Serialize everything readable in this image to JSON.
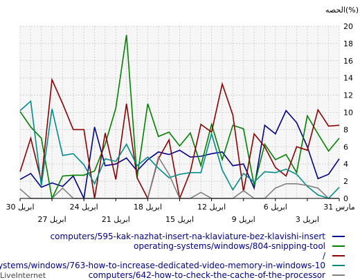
{
  "chart_data": {
    "type": "line",
    "ylabel": "الحصه(%)",
    "ylim": [
      0,
      20
    ],
    "y_ticks": [
      0,
      2,
      4,
      6,
      8,
      10,
      12,
      14,
      16,
      18,
      20
    ],
    "x_ticks": [
      {
        "i": 0,
        "top": "30 ابريل",
        "bottom": ""
      },
      {
        "i": 3,
        "top": "",
        "bottom": "27 ابريل"
      },
      {
        "i": 6,
        "top": "24 ابريل",
        "bottom": ""
      },
      {
        "i": 9,
        "top": "",
        "bottom": "21 ابريل"
      },
      {
        "i": 12,
        "top": "18 ابريل",
        "bottom": ""
      },
      {
        "i": 15,
        "top": "",
        "bottom": "15 ابريل"
      },
      {
        "i": 18,
        "top": "12 ابريل",
        "bottom": ""
      },
      {
        "i": 21,
        "top": "",
        "bottom": "9 ابريل"
      },
      {
        "i": 24,
        "top": "6 ابريل",
        "bottom": ""
      },
      {
        "i": 27,
        "top": "",
        "bottom": "3 ابريل"
      },
      {
        "i": 30,
        "top": "31 مارس",
        "bottom": ""
      }
    ],
    "points_per_series": 31,
    "x_direction": "right-to-left (index 0 = 30 ابريل on the left, index 30 = 31 مارس on the right)",
    "grid": true,
    "series": [
      {
        "name": "computers/595-kak-nazhat-insert-na-klaviature-bez-klavishi-insert",
        "color": "#00008b",
        "values": [
          2.2,
          2.9,
          1.3,
          1.8,
          1.4,
          2.6,
          0.0,
          8.3,
          3.8,
          4.0,
          4.7,
          3.2,
          4.5,
          5.4,
          5.1,
          5.6,
          4.8,
          4.9,
          5.2,
          5.4,
          3.8,
          4.0,
          1.2,
          8.5,
          7.5,
          10.2,
          8.8,
          6.0,
          2.3,
          2.8,
          4.6
        ]
      },
      {
        "name": "operating-systems/windows/804-snipping-tool",
        "color": "#008000",
        "values": [
          10.1,
          8.3,
          7.0,
          0.0,
          2.6,
          2.7,
          2.7,
          3.2,
          6.3,
          10.5,
          19.0,
          2.4,
          11.0,
          7.2,
          7.7,
          6.1,
          7.6,
          3.8,
          8.6,
          4.5,
          8.5,
          8.1,
          1.5,
          6.3,
          4.5,
          5.1,
          3.0,
          9.6,
          7.5,
          5.5,
          7.0
        ]
      },
      {
        "name": "/",
        "color": "#8b0000",
        "values": [
          3.1,
          7.0,
          2.0,
          13.8,
          11.0,
          8.0,
          8.0,
          0.0,
          7.6,
          2.2,
          11.0,
          2.4,
          0.0,
          4.6,
          6.8,
          0.0,
          3.1,
          8.6,
          7.7,
          13.3,
          9.7,
          0.8,
          7.5,
          6.0,
          3.6,
          2.6,
          6.0,
          5.6,
          10.3,
          8.4,
          8.5
        ]
      },
      {
        "name": "operating-systems/windows/763-how-to-increase-dedicated-video-memory-in-windows-10",
        "color": "#008b8b",
        "values": [
          10.2,
          11.3,
          1.5,
          10.4,
          5.0,
          5.2,
          3.9,
          1.7,
          4.6,
          4.3,
          6.3,
          3.8,
          4.8,
          3.5,
          2.4,
          2.8,
          3.0,
          3.0,
          7.5,
          3.3,
          1.0,
          2.9,
          1.9,
          3.1,
          3.0,
          3.4,
          2.8,
          1.4,
          0.4,
          0.0,
          1.3
        ]
      },
      {
        "name": "computers/642-how-to-check-the-cache-of-the-processor",
        "color": "#808080",
        "values": [
          1.1,
          0.0,
          0.0,
          0.0,
          1.2,
          0.0,
          0.0,
          0.0,
          0.0,
          0.0,
          0.0,
          0.0,
          0.0,
          4.8,
          2.8,
          0.0,
          0.0,
          0.7,
          0.0,
          0.0,
          0.0,
          0.9,
          0.0,
          0.0,
          1.2,
          1.7,
          1.7,
          1.5,
          1.2,
          0.0,
          0.0
        ]
      }
    ]
  },
  "watermark": "LiveInternet"
}
